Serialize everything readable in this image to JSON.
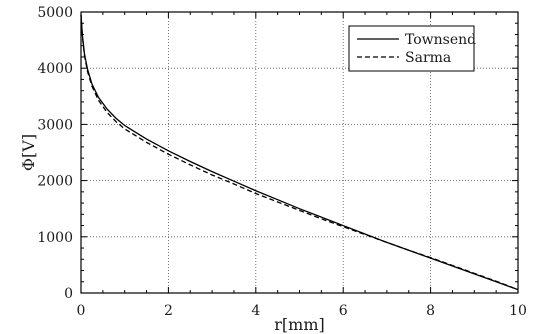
{
  "chart_data": {
    "type": "line",
    "title": "",
    "xlabel": "r[mm]",
    "ylabel": "Φ[V]",
    "xlim": [
      0,
      10
    ],
    "ylim": [
      0,
      5000
    ],
    "xticks": [
      0,
      2,
      4,
      6,
      8,
      10
    ],
    "yticks": [
      0,
      1000,
      2000,
      3000,
      4000,
      5000
    ],
    "grid": true,
    "grid_style": "dotted",
    "legend_position": "top-right",
    "series": [
      {
        "name": "Townsend",
        "line_style": "solid",
        "color": "#000000",
        "x": [
          0,
          0.03,
          0.08,
          0.15,
          0.25,
          0.4,
          0.6,
          0.8,
          1.0,
          1.5,
          2.0,
          2.5,
          3.0,
          3.5,
          4.0,
          4.5,
          5.0,
          5.5,
          6.0,
          6.5,
          7.0,
          7.5,
          8.0,
          8.5,
          9.0,
          9.5,
          10.0
        ],
        "y": [
          4950,
          4600,
          4250,
          3980,
          3720,
          3480,
          3270,
          3110,
          2980,
          2740,
          2530,
          2340,
          2160,
          1990,
          1820,
          1660,
          1500,
          1350,
          1200,
          1050,
          900,
          760,
          620,
          480,
          340,
          200,
          60
        ]
      },
      {
        "name": "Sarma",
        "line_style": "dashed",
        "color": "#000000",
        "x": [
          0,
          0.03,
          0.08,
          0.15,
          0.25,
          0.4,
          0.6,
          0.8,
          1.0,
          1.5,
          2.0,
          2.5,
          3.0,
          3.5,
          4.0,
          4.5,
          5.0,
          5.5,
          6.0,
          6.5,
          7.0,
          7.5,
          8.0,
          8.5,
          9.0,
          9.5,
          10.0
        ],
        "y": [
          4950,
          4580,
          4220,
          3940,
          3680,
          3430,
          3210,
          3050,
          2920,
          2680,
          2470,
          2280,
          2100,
          1940,
          1770,
          1620,
          1470,
          1320,
          1180,
          1040,
          900,
          760,
          630,
          490,
          350,
          210,
          60
        ]
      }
    ]
  }
}
